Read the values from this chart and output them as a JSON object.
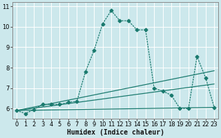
{
  "xlabel": "Humidex (Indice chaleur)",
  "bg_color": "#cce8ec",
  "grid_color": "#ffffff",
  "line_color": "#1a7a6e",
  "xlim": [
    -0.5,
    23.5
  ],
  "ylim": [
    5.5,
    11.2
  ],
  "yticks": [
    6,
    7,
    8,
    9,
    10,
    11
  ],
  "xticks": [
    0,
    1,
    2,
    3,
    4,
    5,
    6,
    7,
    8,
    9,
    10,
    11,
    12,
    13,
    14,
    15,
    16,
    17,
    18,
    19,
    20,
    21,
    22,
    23
  ],
  "line1_x": [
    0,
    23
  ],
  "line1_y": [
    5.9,
    6.05
  ],
  "line2_x": [
    0,
    23
  ],
  "line2_y": [
    5.9,
    7.2
  ],
  "line3_x": [
    0,
    23
  ],
  "line3_y": [
    5.9,
    7.85
  ],
  "curve_x": [
    0,
    1,
    2,
    3,
    4,
    5,
    6,
    7,
    8,
    9,
    10,
    11,
    12,
    13,
    14,
    15,
    16,
    17,
    18,
    19,
    20,
    21,
    22,
    23
  ],
  "curve_y": [
    5.9,
    5.75,
    5.95,
    6.2,
    6.2,
    6.2,
    6.3,
    6.35,
    7.8,
    8.85,
    10.15,
    10.8,
    10.3,
    10.3,
    9.85,
    9.85,
    7.0,
    6.85,
    6.65,
    6.0,
    6.0,
    8.55,
    7.5,
    6.05
  ],
  "linewidth": 0.9,
  "marker_size": 2.5,
  "xlabel_fontsize": 7,
  "tick_fontsize": 6
}
